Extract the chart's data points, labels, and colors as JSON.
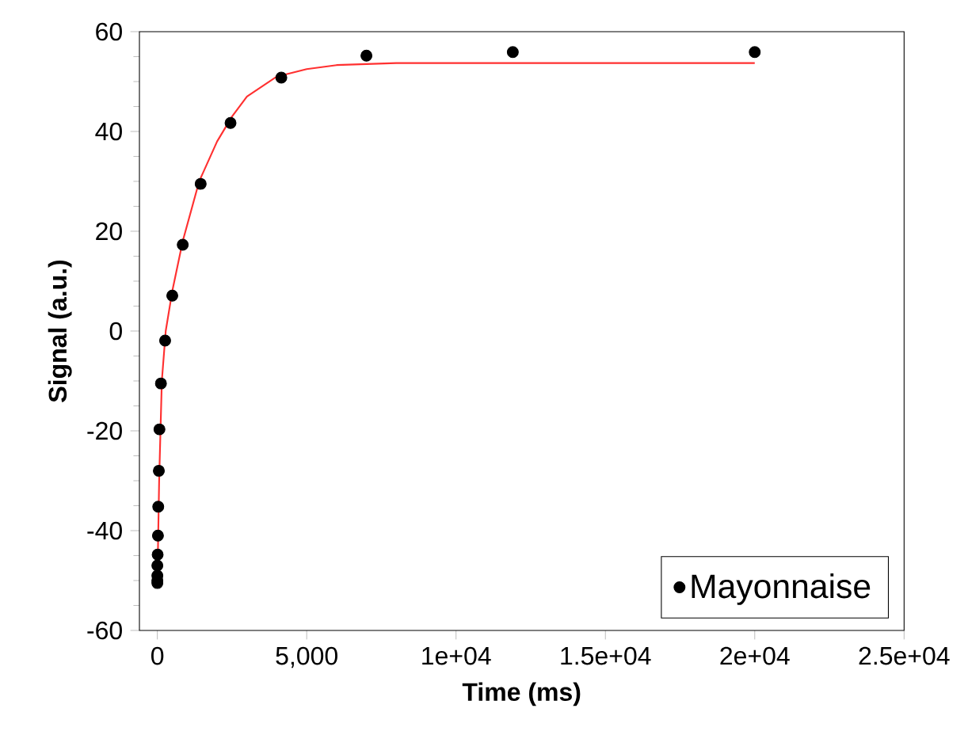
{
  "chart_data": {
    "type": "scatter",
    "xlabel": "Time (ms)",
    "ylabel": "Signal (a.u.)",
    "xlim": [
      -600,
      25000
    ],
    "ylim": [
      -60,
      60
    ],
    "xticks": [
      0,
      {
        "value": 5000,
        "label": "5,000"
      },
      {
        "value": 10000,
        "label": "1e+04"
      },
      {
        "value": 15000,
        "label": "1.5e+04"
      },
      {
        "value": 20000,
        "label": "2e+04"
      },
      {
        "value": 25000,
        "label": "2.5e+04"
      }
    ],
    "yticks": [
      -60,
      -40,
      -20,
      0,
      20,
      40,
      60
    ],
    "grid": false,
    "legend": "bottom right",
    "series": [
      {
        "name": "Mayonnaise",
        "marker": "circle",
        "color": "#000000",
        "x": [
          0,
          0,
          0,
          0,
          10,
          20,
          30,
          50,
          70,
          120,
          260,
          500,
          850,
          1450,
          2450,
          4150,
          7000,
          11900,
          20000
        ],
        "values": [
          -50.5,
          -50,
          -49,
          -47,
          -44.8,
          -41,
          -35.2,
          -28,
          -19.7,
          -10.5,
          -1.9,
          7.1,
          17.3,
          29.5,
          41.7,
          50.8,
          55.2,
          55.9,
          55.9
        ]
      },
      {
        "type": "line",
        "marker": "none",
        "color": "#ff3030",
        "x": [
          0,
          60,
          150,
          280,
          500,
          850,
          1400,
          2000,
          2500,
          3000,
          4000,
          5000,
          6000,
          8000,
          20000
        ],
        "values": [
          -51,
          -30,
          -10,
          0,
          8,
          18,
          30,
          38,
          43,
          47,
          51,
          52.5,
          53.3,
          53.7,
          53.7
        ]
      }
    ]
  }
}
